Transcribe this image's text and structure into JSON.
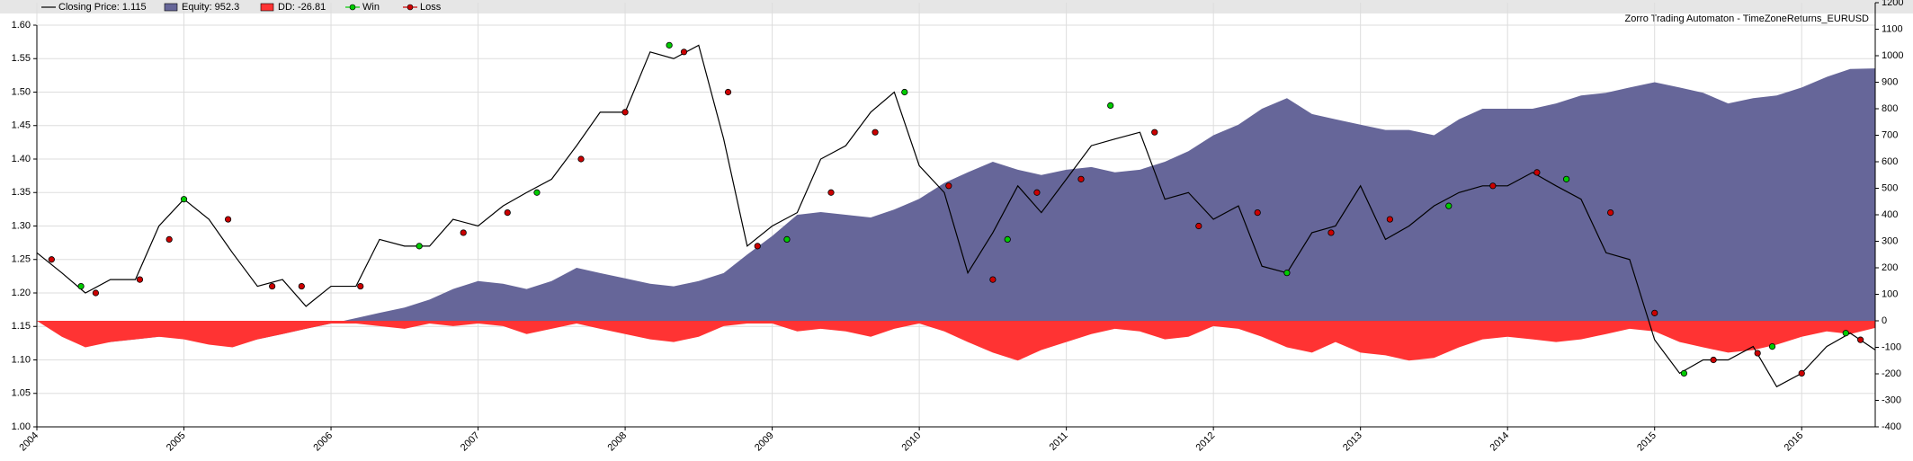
{
  "chart_data": {
    "type": "line",
    "title": "Zorro Trading Automaton - TimeZoneReturns_EURUSD",
    "legend": "top",
    "grid": true,
    "x": [
      2004,
      2004.17,
      2004.33,
      2004.5,
      2004.67,
      2004.83,
      2005,
      2005.17,
      2005.33,
      2005.5,
      2005.67,
      2005.83,
      2006,
      2006.17,
      2006.33,
      2006.5,
      2006.67,
      2006.83,
      2007,
      2007.17,
      2007.33,
      2007.5,
      2007.67,
      2007.83,
      2008,
      2008.17,
      2008.33,
      2008.5,
      2008.67,
      2008.83,
      2009,
      2009.17,
      2009.33,
      2009.5,
      2009.67,
      2009.83,
      2010,
      2010.17,
      2010.33,
      2010.5,
      2010.67,
      2010.83,
      2011,
      2011.17,
      2011.33,
      2011.5,
      2011.67,
      2011.83,
      2012,
      2012.17,
      2012.33,
      2012.5,
      2012.67,
      2012.83,
      2013,
      2013.17,
      2013.33,
      2013.5,
      2013.67,
      2013.83,
      2014,
      2014.17,
      2014.33,
      2014.5,
      2014.67,
      2014.83,
      2015,
      2015.17,
      2015.33,
      2015.5,
      2015.67,
      2015.83,
      2016,
      2016.17,
      2016.33,
      2016.5
    ],
    "xlim": [
      2004,
      2016.5
    ],
    "xticks": [
      2004,
      2005,
      2006,
      2007,
      2008,
      2009,
      2010,
      2011,
      2012,
      2013,
      2014,
      2015,
      2016
    ],
    "ylim": [
      1.0,
      1.6
    ],
    "yticks": [
      {
        "value": 1.0,
        "label": "1.00"
      },
      1.05,
      {
        "value": 1.1,
        "label": "1.10"
      },
      1.15,
      {
        "value": 1.2,
        "label": "1.20"
      },
      1.25,
      {
        "value": 1.3,
        "label": "1.30"
      },
      1.35,
      {
        "value": 1.4,
        "label": "1.40"
      },
      1.45,
      {
        "value": 1.5,
        "label": "1.50"
      },
      1.55,
      {
        "value": 1.6,
        "label": "1.60"
      }
    ],
    "y2lim": [
      -400,
      1200
    ],
    "y2ticks": [
      -400,
      -300,
      -200,
      -100,
      0,
      100,
      200,
      300,
      400,
      500,
      600,
      700,
      800,
      900,
      1000,
      1100,
      1200
    ],
    "series": [
      {
        "name": "Equity: 952.3",
        "color": "#666699",
        "style": "area",
        "axis": "y2",
        "values": [
          0,
          -50,
          -90,
          -80,
          -70,
          -60,
          -60,
          -80,
          -90,
          -70,
          -50,
          -30,
          -10,
          10,
          30,
          50,
          80,
          120,
          150,
          140,
          120,
          150,
          200,
          180,
          160,
          140,
          130,
          150,
          180,
          250,
          320,
          400,
          410,
          400,
          390,
          420,
          460,
          520,
          560,
          600,
          570,
          550,
          570,
          580,
          560,
          570,
          600,
          640,
          700,
          740,
          800,
          840,
          780,
          760,
          740,
          720,
          720,
          700,
          760,
          800,
          800,
          800,
          820,
          850,
          860,
          880,
          900,
          880,
          860,
          820,
          840,
          850,
          880,
          920,
          950,
          952.3
        ]
      },
      {
        "name": "DD: -26.81",
        "color": "#ff3333",
        "style": "area",
        "axis": "y2",
        "values": [
          0,
          -60,
          -100,
          -80,
          -70,
          -60,
          -70,
          -90,
          -100,
          -70,
          -50,
          -30,
          -10,
          -10,
          -20,
          -30,
          -10,
          -20,
          -10,
          -20,
          -50,
          -30,
          -10,
          -30,
          -50,
          -70,
          -80,
          -60,
          -20,
          -10,
          -10,
          -40,
          -30,
          -40,
          -60,
          -30,
          -10,
          -40,
          -80,
          -120,
          -150,
          -110,
          -80,
          -50,
          -30,
          -40,
          -70,
          -60,
          -20,
          -30,
          -60,
          -100,
          -120,
          -80,
          -120,
          -130,
          -150,
          -140,
          -100,
          -70,
          -60,
          -70,
          -80,
          -70,
          -50,
          -30,
          -40,
          -80,
          -100,
          -120,
          -110,
          -90,
          -60,
          -40,
          -50,
          -26.81
        ]
      },
      {
        "name": "Closing Price: 1.115",
        "color": "#000000",
        "style": "line",
        "values": [
          1.26,
          1.23,
          1.2,
          1.22,
          1.22,
          1.3,
          1.34,
          1.31,
          1.26,
          1.21,
          1.22,
          1.18,
          1.21,
          1.21,
          1.28,
          1.27,
          1.27,
          1.31,
          1.3,
          1.33,
          1.35,
          1.37,
          1.42,
          1.47,
          1.47,
          1.56,
          1.55,
          1.57,
          1.43,
          1.27,
          1.3,
          1.32,
          1.4,
          1.42,
          1.47,
          1.5,
          1.39,
          1.35,
          1.23,
          1.29,
          1.36,
          1.32,
          1.37,
          1.42,
          1.43,
          1.44,
          1.34,
          1.35,
          1.31,
          1.33,
          1.24,
          1.23,
          1.29,
          1.3,
          1.36,
          1.28,
          1.3,
          1.33,
          1.35,
          1.36,
          1.36,
          1.38,
          1.36,
          1.34,
          1.26,
          1.25,
          1.13,
          1.08,
          1.1,
          1.1,
          1.12,
          1.06,
          1.08,
          1.12,
          1.14,
          1.115
        ]
      },
      {
        "name": "Win",
        "color": "#00cc00",
        "style": "markers",
        "x": [
          2004.3,
          2005.0,
          2006.6,
          2007.4,
          2008.3,
          2009.1,
          2009.9,
          2010.6,
          2011.3,
          2012.5,
          2013.6,
          2014.4,
          2015.2,
          2015.8,
          2016.3
        ],
        "values": [
          1.21,
          1.34,
          1.27,
          1.35,
          1.57,
          1.28,
          1.5,
          1.28,
          1.48,
          1.23,
          1.33,
          1.37,
          1.08,
          1.12,
          1.14
        ]
      },
      {
        "name": "Loss",
        "color": "#cc0000",
        "style": "markers",
        "x": [
          2004.1,
          2004.4,
          2004.7,
          2004.9,
          2005.3,
          2005.6,
          2005.8,
          2006.2,
          2006.9,
          2007.2,
          2007.7,
          2008.0,
          2008.4,
          2008.7,
          2008.9,
          2009.4,
          2009.7,
          2010.2,
          2010.5,
          2010.8,
          2011.1,
          2011.6,
          2011.9,
          2012.3,
          2012.8,
          2013.2,
          2013.9,
          2014.2,
          2014.7,
          2015.0,
          2015.4,
          2015.7,
          2016.0,
          2016.4
        ],
        "values": [
          1.25,
          1.2,
          1.22,
          1.28,
          1.31,
          1.21,
          1.21,
          1.21,
          1.29,
          1.32,
          1.4,
          1.47,
          1.56,
          1.5,
          1.27,
          1.35,
          1.44,
          1.36,
          1.22,
          1.35,
          1.37,
          1.44,
          1.3,
          1.32,
          1.29,
          1.31,
          1.36,
          1.38,
          1.32,
          1.17,
          1.1,
          1.11,
          1.08,
          1.13
        ]
      }
    ]
  }
}
